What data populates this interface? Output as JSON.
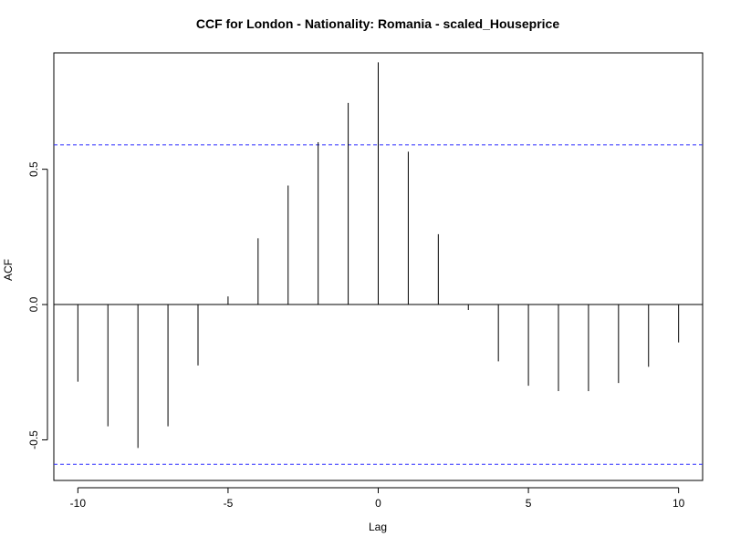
{
  "chart_data": {
    "type": "bar",
    "title": "CCF for London - Nationality: Romania - scaled_Houseprice",
    "xlabel": "Lag",
    "ylabel": "ACF",
    "xlim": [
      -10.8,
      10.8
    ],
    "ylim": [
      -0.65,
      0.93
    ],
    "x_ticks": [
      -10,
      -5,
      0,
      5,
      10
    ],
    "y_ticks": [
      -0.5,
      0.0,
      0.5
    ],
    "x_tick_labels": [
      "-10",
      "-5",
      "0",
      "5",
      "10"
    ],
    "y_tick_labels": [
      "-0.5",
      "0.0",
      "0.5"
    ],
    "lags": [
      -10,
      -9,
      -8,
      -7,
      -6,
      -5,
      -4,
      -3,
      -2,
      -1,
      0,
      1,
      2,
      3,
      4,
      5,
      6,
      7,
      8,
      9,
      10
    ],
    "values": [
      -0.285,
      -0.45,
      -0.53,
      -0.45,
      -0.225,
      0.03,
      0.245,
      0.44,
      0.6,
      0.745,
      0.895,
      0.565,
      0.26,
      -0.02,
      -0.21,
      -0.3,
      -0.32,
      -0.32,
      -0.29,
      -0.23,
      -0.14
    ],
    "confidence_bounds": [
      0.59,
      -0.59
    ],
    "colors": {
      "stem": "#000000",
      "confidence": "#3333ff",
      "zero_line": "#000000"
    }
  }
}
